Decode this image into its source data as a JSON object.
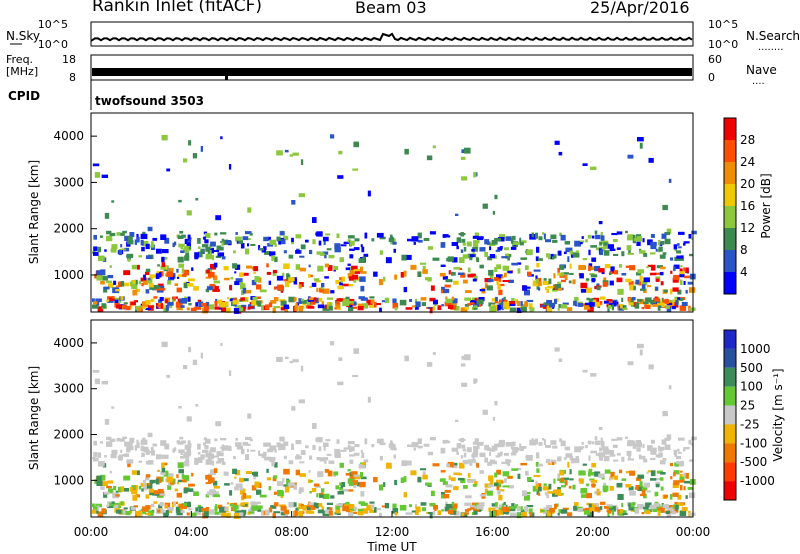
{
  "header": {
    "station": "Rankin Inlet (fitACF)",
    "beam": "Beam 03",
    "date": "25/Apr/2016"
  },
  "strip_labels": {
    "left_top": "N.Sky",
    "left_freq_1": "Freq.",
    "left_freq_2": "[MHz]",
    "left_cpid": "CPID",
    "right_top": "N.Search",
    "right_dots_1": "........",
    "right_mid": "Nave",
    "right_dots_2": "....",
    "cpid_name": "twofsound 3503",
    "noise_ticks_left": [
      "10^5",
      "10^0"
    ],
    "noise_ticks_right": [
      "10^5",
      "10^0"
    ],
    "freq_ticks": [
      "18",
      "8"
    ],
    "nave_ticks": [
      "60",
      "0"
    ]
  },
  "chart_data": [
    {
      "type": "heatmap",
      "panel": "power",
      "ylabel": "Slant Range [km]",
      "ylim": [
        200,
        4500
      ],
      "y_ticks": [
        "1000",
        "2000",
        "3000",
        "4000"
      ],
      "colorbar": {
        "label": "Power [dB]",
        "ticks": [
          "4",
          "8",
          "12",
          "16",
          "20",
          "24",
          "28"
        ],
        "colors": [
          "#0000ff",
          "#2a55c8",
          "#3c8a50",
          "#8cc83c",
          "#f0c800",
          "#f08c00",
          "#ff5000",
          "#f00000"
        ]
      }
    },
    {
      "type": "heatmap",
      "panel": "velocity",
      "ylabel": "Slant Range [km]",
      "ylim": [
        200,
        4500
      ],
      "y_ticks": [
        "1000",
        "2000",
        "3000",
        "4000"
      ],
      "xlabel": "Time UT",
      "x_ticks": [
        "00:00",
        "04:00",
        "08:00",
        "12:00",
        "16:00",
        "20:00",
        "00:00"
      ],
      "colorbar": {
        "label": "Velocity [m s⁻¹]",
        "ticks": [
          "1000",
          "500",
          "100",
          "25",
          "-25",
          "-100",
          "-500",
          "-1000"
        ],
        "colors": [
          "#1e28c8",
          "#2850a0",
          "#3c8c5a",
          "#64c832",
          "#c8c8c8",
          "#f0b400",
          "#f07800",
          "#ff3c00",
          "#f00000"
        ]
      }
    }
  ]
}
